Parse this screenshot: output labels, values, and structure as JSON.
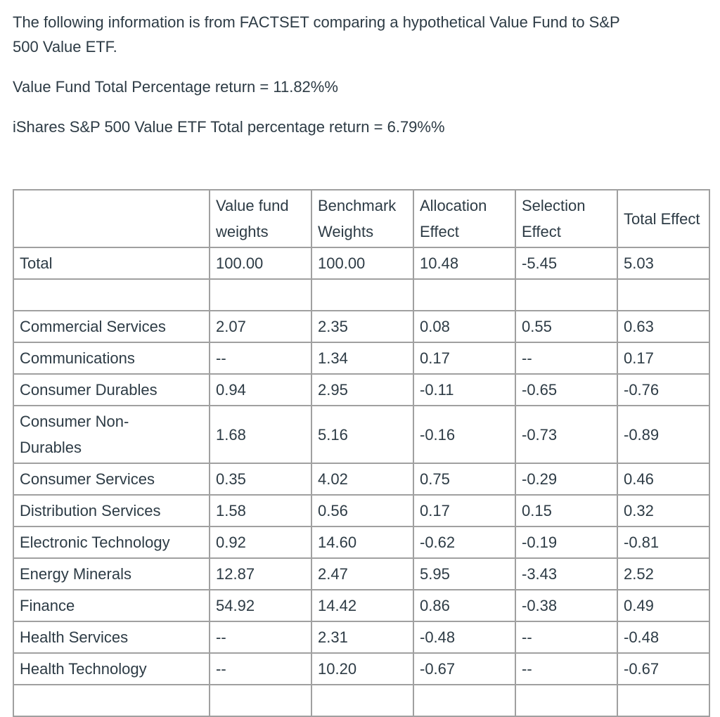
{
  "page": {
    "background_color": "#ffffff",
    "text_color": "#2d3b45",
    "table_border_color": "#a0a0a0"
  },
  "intro": {
    "paragraph1": "The following information is from FACTSET comparing a hypothetical Value Fund to S&P\n500 Value ETF.",
    "paragraph2": "Value Fund Total Percentage return = 11.82%%",
    "paragraph3": "iShares S&P 500 Value ETF Total percentage return = 6.79%%"
  },
  "table": {
    "headers": [
      "",
      "Value fund\nweights",
      "Benchmark\nWeights",
      "Allocation\nEffect",
      "Selection\nEffect",
      "Total Effect"
    ],
    "total_row": {
      "label": "Total",
      "values": [
        "100.00",
        "100.00",
        "10.48",
        "-5.45",
        "5.03"
      ]
    },
    "rows": [
      {
        "label": "Commercial Services",
        "values": [
          "2.07",
          "2.35",
          "0.08",
          "0.55",
          "0.63"
        ]
      },
      {
        "label": "Communications",
        "values": [
          "--",
          "1.34",
          "0.17",
          "--",
          "0.17"
        ]
      },
      {
        "label": "Consumer Durables",
        "values": [
          "0.94",
          "2.95",
          "-0.11",
          "-0.65",
          "-0.76"
        ]
      },
      {
        "label": "Consumer Non-\nDurables",
        "values": [
          "1.68",
          "5.16",
          "-0.16",
          "-0.73",
          "-0.89"
        ]
      },
      {
        "label": "Consumer Services",
        "values": [
          "0.35",
          "4.02",
          "0.75",
          "-0.29",
          "0.46"
        ]
      },
      {
        "label": "Distribution Services",
        "values": [
          "1.58",
          "0.56",
          "0.17",
          "0.15",
          "0.32"
        ]
      },
      {
        "label": "Electronic Technology",
        "values": [
          "0.92",
          "14.60",
          "-0.62",
          "-0.19",
          "-0.81"
        ]
      },
      {
        "label": "Energy Minerals",
        "values": [
          "12.87",
          "2.47",
          "5.95",
          "-3.43",
          "2.52"
        ]
      },
      {
        "label": "Finance",
        "values": [
          "54.92",
          "14.42",
          "0.86",
          "-0.38",
          "0.49"
        ]
      },
      {
        "label": "Health Services",
        "values": [
          "--",
          "2.31",
          "-0.48",
          "--",
          "-0.48"
        ]
      },
      {
        "label": "Health Technology",
        "values": [
          "--",
          "10.20",
          "-0.67",
          "--",
          "-0.67"
        ]
      }
    ]
  }
}
